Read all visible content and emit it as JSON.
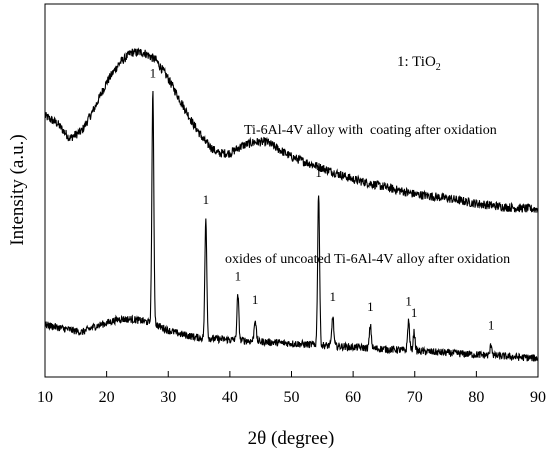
{
  "chart_data": {
    "type": "line",
    "title": "",
    "xlabel": "2θ (degree)",
    "ylabel": "Intensity (a.u.)",
    "xlim": [
      10,
      90
    ],
    "x_ticks": [
      10,
      20,
      30,
      40,
      50,
      60,
      70,
      80,
      90
    ],
    "y_ticks_shown": false,
    "grid": false,
    "legend": {
      "marker": "1",
      "text": "TiO",
      "subscript": "2"
    },
    "series": [
      {
        "name": "Ti-6Al-4V alloy with  coating after oxidation",
        "points": [
          [
            10,
            0.7
          ],
          [
            12,
            0.68
          ],
          [
            14,
            0.64
          ],
          [
            16,
            0.66
          ],
          [
            18,
            0.72
          ],
          [
            20,
            0.79
          ],
          [
            22,
            0.84
          ],
          [
            24,
            0.87
          ],
          [
            26,
            0.87
          ],
          [
            28,
            0.85
          ],
          [
            30,
            0.8
          ],
          [
            32,
            0.74
          ],
          [
            34,
            0.68
          ],
          [
            36,
            0.63
          ],
          [
            38,
            0.6
          ],
          [
            40,
            0.6
          ],
          [
            42,
            0.62
          ],
          [
            44,
            0.63
          ],
          [
            46,
            0.63
          ],
          [
            48,
            0.61
          ],
          [
            50,
            0.59
          ],
          [
            55,
            0.56
          ],
          [
            60,
            0.53
          ],
          [
            65,
            0.51
          ],
          [
            70,
            0.49
          ],
          [
            75,
            0.48
          ],
          [
            80,
            0.465
          ],
          [
            85,
            0.455
          ],
          [
            90,
            0.45
          ]
        ]
      },
      {
        "name": "oxides of uncoated Ti-6Al-4V alloy after oxidation",
        "points": [
          [
            10,
            0.14
          ],
          [
            13,
            0.13
          ],
          [
            16,
            0.12
          ],
          [
            18,
            0.135
          ],
          [
            20,
            0.145
          ],
          [
            22,
            0.155
          ],
          [
            24,
            0.155
          ],
          [
            26,
            0.15
          ],
          [
            28,
            0.14
          ],
          [
            30,
            0.125
          ],
          [
            32,
            0.115
          ],
          [
            35,
            0.105
          ],
          [
            40,
            0.1
          ],
          [
            45,
            0.095
          ],
          [
            50,
            0.09
          ],
          [
            55,
            0.085
          ],
          [
            60,
            0.08
          ],
          [
            65,
            0.075
          ],
          [
            70,
            0.07
          ],
          [
            75,
            0.065
          ],
          [
            80,
            0.06
          ],
          [
            85,
            0.055
          ],
          [
            90,
            0.05
          ]
        ],
        "peaks": [
          {
            "x": 27.5,
            "height": 0.62,
            "label": "1"
          },
          {
            "x": 36.1,
            "height": 0.32,
            "label": "1"
          },
          {
            "x": 41.3,
            "height": 0.12,
            "label": "1"
          },
          {
            "x": 44.1,
            "height": 0.06,
            "label": "1"
          },
          {
            "x": 54.4,
            "height": 0.41,
            "label": "1"
          },
          {
            "x": 56.7,
            "height": 0.08,
            "label": "1"
          },
          {
            "x": 62.8,
            "height": 0.06,
            "label": "1"
          },
          {
            "x": 69.0,
            "height": 0.08,
            "label": "1"
          },
          {
            "x": 69.9,
            "height": 0.05,
            "label": "1"
          },
          {
            "x": 82.4,
            "height": 0.03,
            "label": "1"
          }
        ]
      }
    ]
  }
}
